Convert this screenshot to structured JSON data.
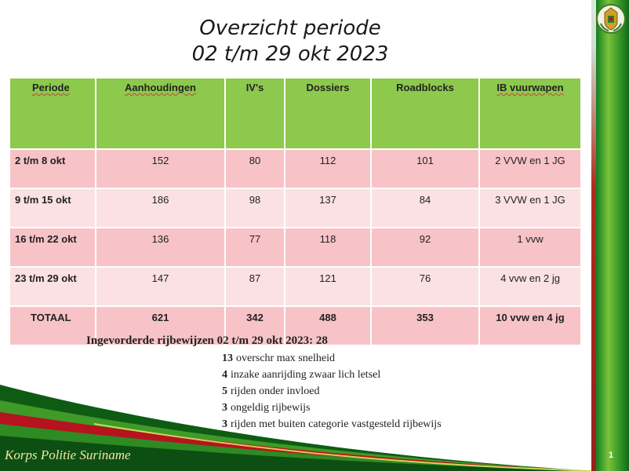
{
  "title": {
    "line1": "Overzicht  periode",
    "line2": "02 t/m 29 okt 2023"
  },
  "table": {
    "headers": [
      "Periode",
      "Aanhoudingen",
      "IV's",
      "Dossiers",
      "Roadblocks",
      "IB vuurwapen"
    ],
    "rows": [
      [
        "2 t/m 8 okt",
        "152",
        "80",
        "112",
        "101",
        "2 VVW en 1 JG"
      ],
      [
        "9 t/m 15 okt",
        "186",
        "98",
        "137",
        "84",
        "3 VVW en 1 JG"
      ],
      [
        "16 t/m 22 okt",
        "136",
        "77",
        "118",
        "92",
        "1 vvw"
      ],
      [
        "23 t/m 29 okt",
        "147",
        "87",
        "121",
        "76",
        "4 vvw en 2 jg"
      ]
    ],
    "total": [
      "TOTAAL",
      "621",
      "342",
      "488",
      "353",
      "10 vvw en 4 jg"
    ]
  },
  "summary": {
    "heading": "Ingevorderde rijbewijzen  02 t/m 29 okt 2023:  28",
    "items": [
      {
        "count": "13",
        "text": "overschr max snelheid"
      },
      {
        "count": "4",
        "text": "inzake aanrijding zwaar lich letsel"
      },
      {
        "count": "5",
        "text": "rijden onder invloed"
      },
      {
        "count": "3",
        "text": "ongeldig rijbewijs"
      },
      {
        "count": "3",
        "text": "rijden met buiten categorie vastgesteld rijbewijs"
      }
    ]
  },
  "footer": {
    "org": "Korps Politie Suriname",
    "page": "1"
  },
  "colors": {
    "header_green": "#8dc94c",
    "row_pink_dark": "#f7c3c7",
    "row_pink_light": "#fbe1e3"
  }
}
